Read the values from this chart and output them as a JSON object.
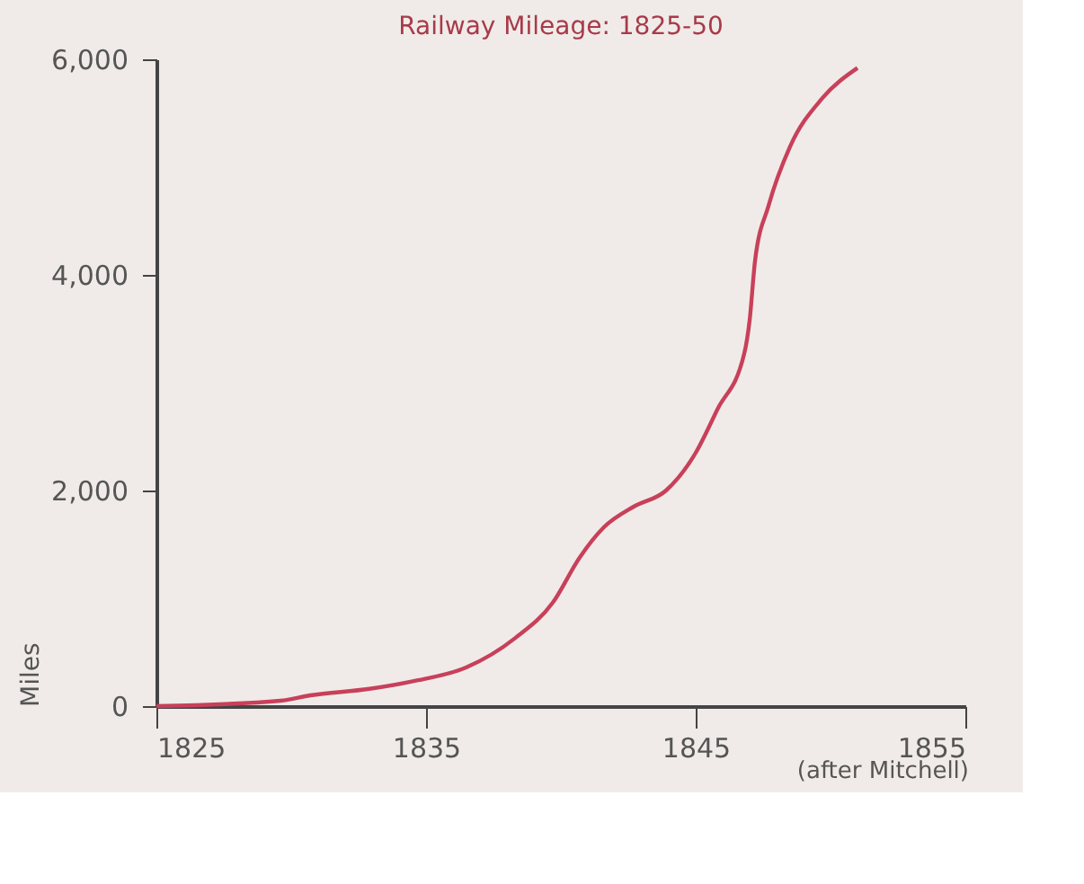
{
  "chart_data": {
    "type": "line",
    "title": "Railway Mileage: 1825-50",
    "ylabel": "Miles",
    "x": [
      1825,
      1829.6,
      1830.7,
      1832.9,
      1834.7,
      1836.5,
      1838.3,
      1839.7,
      1840.7,
      1841.6,
      1842.7,
      1843.9,
      1845.0,
      1845.8,
      1846.8,
      1847.0,
      1847.2,
      1847.7,
      1848.5,
      1849.7,
      1851.0
    ],
    "series": [
      {
        "color": "#c8405a",
        "values": [
          0,
          50,
          100,
          160,
          240,
          360,
          630,
          960,
          1380,
          1660,
          1850,
          2000,
          2350,
          2750,
          3270,
          3580,
          4130,
          4640,
          5190,
          5640,
          5920
        ]
      }
    ],
    "xlim": [
      1825,
      1855
    ],
    "xticks": [
      1825,
      1835,
      1845,
      1855
    ],
    "ylim": [
      0,
      6000
    ],
    "yticks": [
      {
        "value": 0,
        "label": "0"
      },
      {
        "value": 2000,
        "label": "2,000"
      },
      {
        "value": 4000,
        "label": "4,000"
      },
      {
        "value": 6000,
        "label": "6,000"
      }
    ],
    "annotations": [
      "(after Mitchell)"
    ],
    "grid": false,
    "marker": "none",
    "line_style": "solid"
  }
}
